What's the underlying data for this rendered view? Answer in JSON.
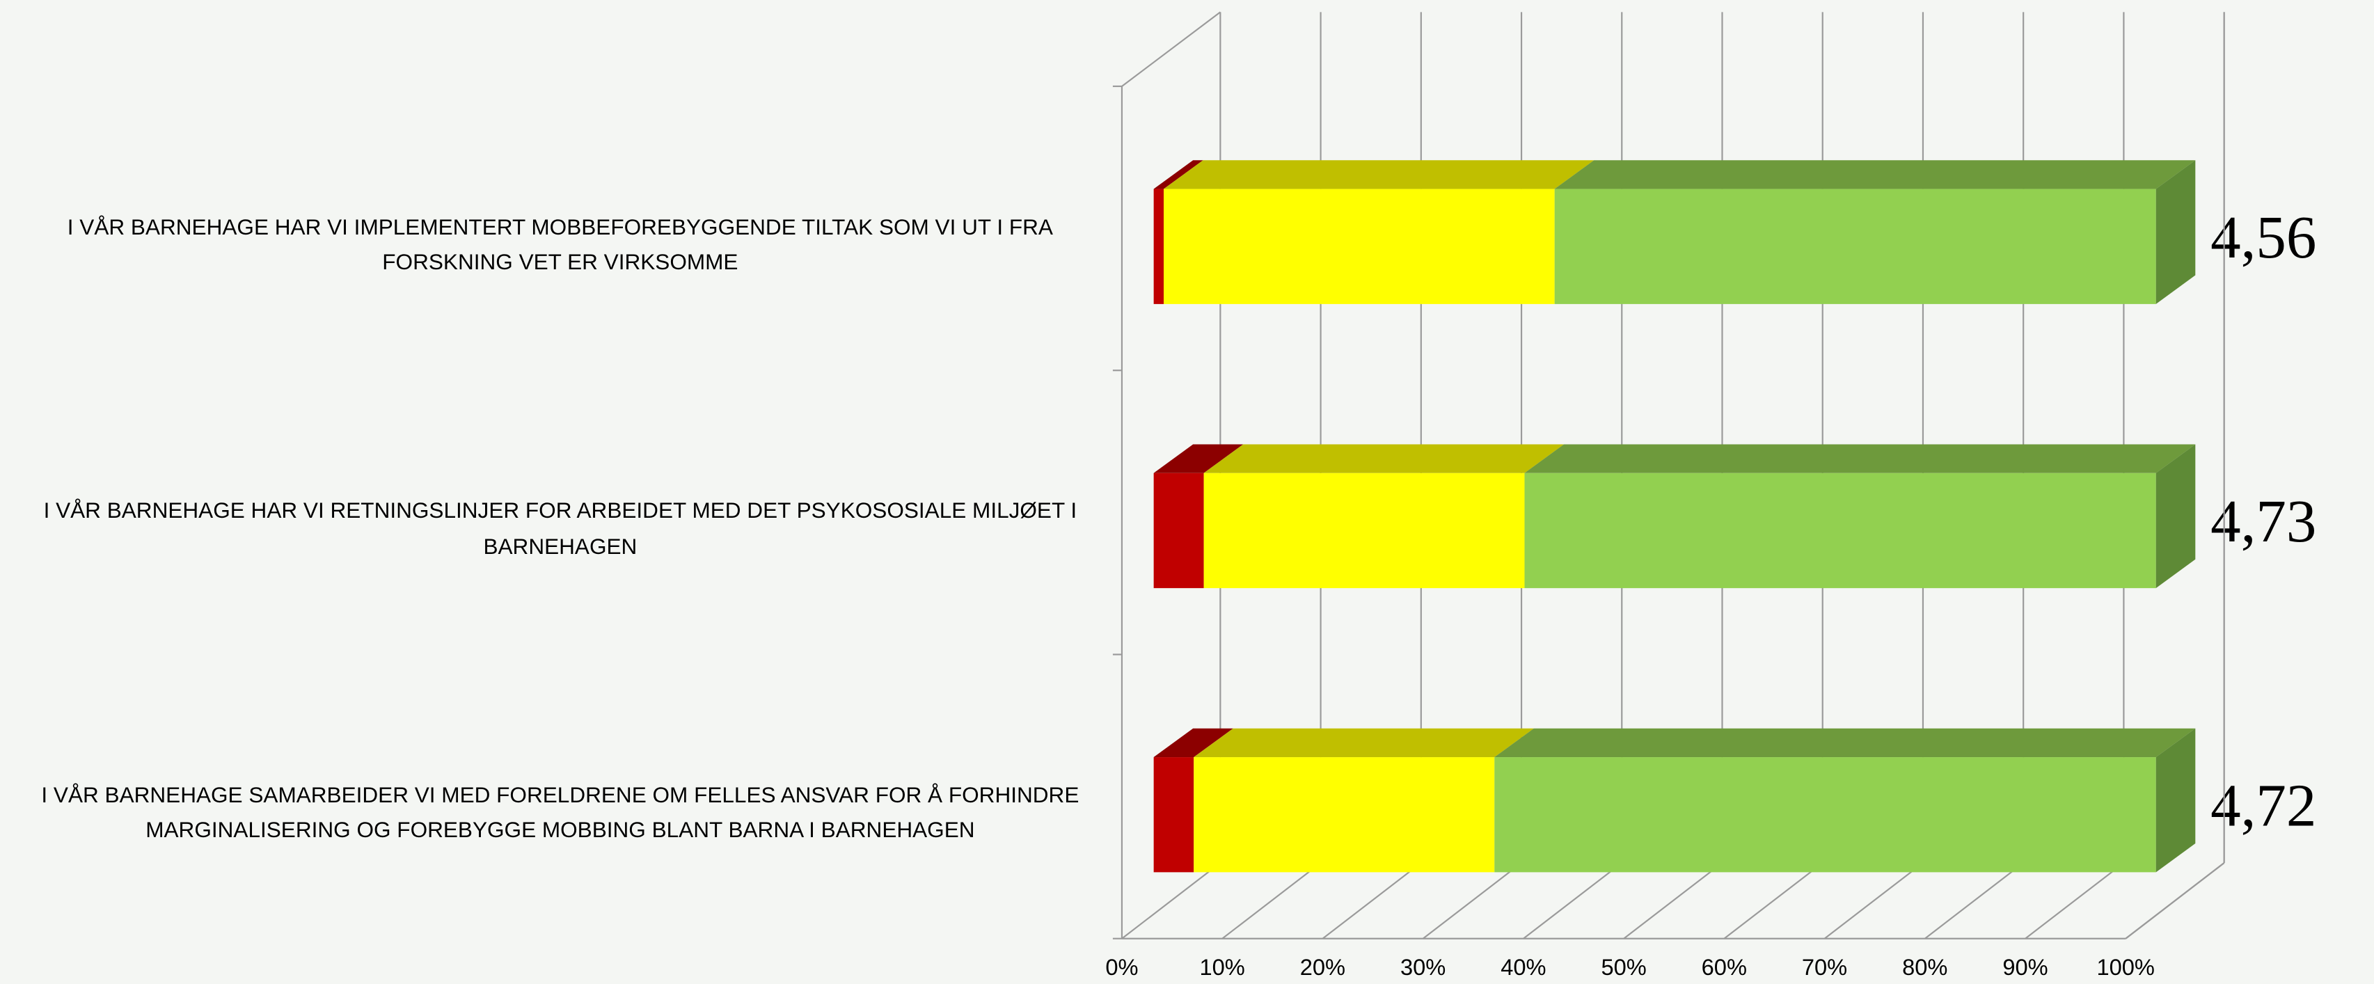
{
  "chart_data": {
    "type": "bar3d_stacked_horizontal",
    "categories": [
      "I VÅR BARNEHAGE  HAR VI IMPLEMENTERT MOBBEFOREBYGGENDE TILTAK SOM VI UT I FRA FORSKNING VET ER VIRKSOMME",
      "I VÅR BARNEHAGE  HAR VI RETNINGSLINJER FOR ARBEIDET MED DET PSYKOSOSIALE MILJØET I BARNEHAGEN",
      "I VÅR BARNEHAGE  SAMARBEIDER VI MED FORELDRENE OM FELLES ANSVAR FOR Å FORHINDRE MARGINALISERING OG FOREBYGGE MOBBING BLANT BARNA I BARNEHAGEN"
    ],
    "series": [
      {
        "color": "#c00000",
        "top_color": "#8c0000",
        "values": [
          1,
          5,
          4
        ]
      },
      {
        "color": "#ffff00",
        "top_color": "#c0bf00",
        "values": [
          39,
          32,
          30
        ]
      },
      {
        "color": "#92d050",
        "top_color": "#6e9a3c",
        "side_color": "#5e8a36",
        "values": [
          60,
          63,
          66
        ]
      }
    ],
    "annotations": [
      "4,56",
      "4,73",
      "4,72"
    ],
    "xlim": [
      0,
      100
    ],
    "xticks": [
      {
        "value": 0,
        "label": "0%"
      },
      {
        "value": 10,
        "label": "10%"
      },
      {
        "value": 20,
        "label": "20%"
      },
      {
        "value": 30,
        "label": "30%"
      },
      {
        "value": 40,
        "label": "40%"
      },
      {
        "value": 50,
        "label": "50%"
      },
      {
        "value": 60,
        "label": "60%"
      },
      {
        "value": 70,
        "label": "70%"
      },
      {
        "value": 80,
        "label": "80%"
      },
      {
        "value": 90,
        "label": "90%"
      },
      {
        "value": 100,
        "label": "100%"
      }
    ],
    "grid": true
  }
}
